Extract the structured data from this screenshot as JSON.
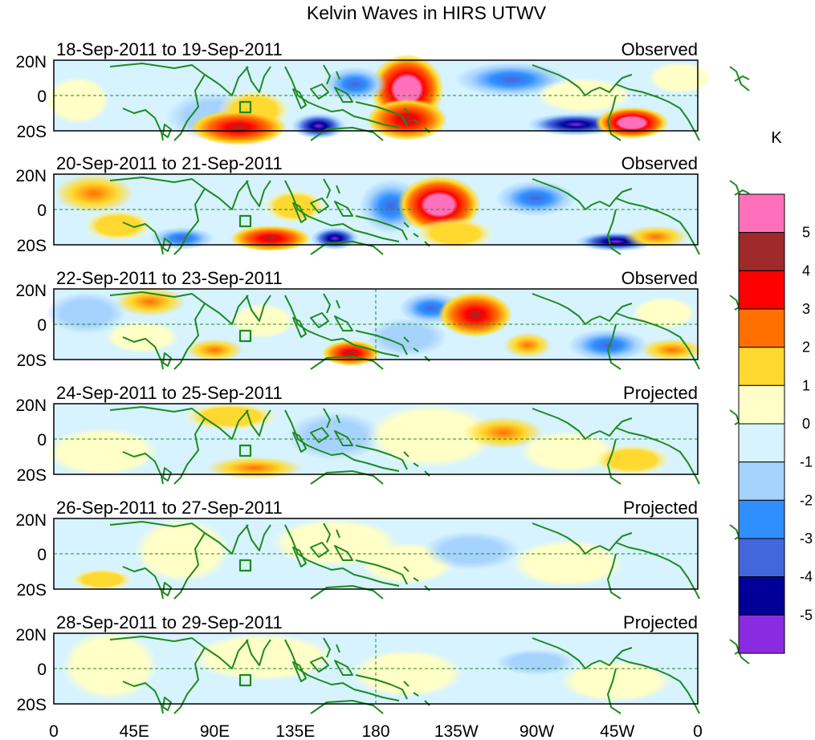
{
  "title": "Kelvin Waves in HIRS UTWV",
  "colorbar": {
    "unit": "K",
    "labels": [
      "5",
      "4",
      "3",
      "2",
      "1",
      "0",
      "-1",
      "-2",
      "-3",
      "-4",
      "-5"
    ],
    "colors": [
      "#ff70bb",
      "#9e2a2a",
      "#ff0000",
      "#ff7000",
      "#ffd92f",
      "#ffffc7",
      "#d6f3ff",
      "#a6d2ff",
      "#2f8fff",
      "#4466dd",
      "#000099",
      "#8a2be2"
    ]
  },
  "lat_labels": [
    "20N",
    "0",
    "20S"
  ],
  "lon_labels": [
    "0",
    "45E",
    "90E",
    "135E",
    "180",
    "135W",
    "90W",
    "45W",
    "0"
  ],
  "panels": [
    {
      "date": "18-Sep-2011 to 19-Sep-2011",
      "label": "Observed"
    },
    {
      "date": "20-Sep-2011 to 21-Sep-2011",
      "label": "Observed"
    },
    {
      "date": "22-Sep-2011 to 23-Sep-2011",
      "label": "Observed"
    },
    {
      "date": "24-Sep-2011 to 25-Sep-2011",
      "label": "Projected"
    },
    {
      "date": "26-Sep-2011 to 27-Sep-2011",
      "label": "Projected"
    },
    {
      "date": "28-Sep-2011 to 29-Sep-2011",
      "label": "Projected"
    }
  ],
  "colors": {
    "coast": "#1f8a1f",
    "equator_line": "#1f8a1f",
    "frame": "#000000"
  }
}
